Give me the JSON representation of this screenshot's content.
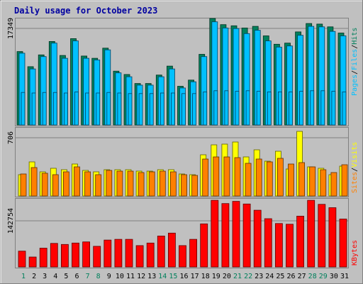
{
  "title": "Daily usage for October 2023",
  "colors": {
    "background": "#c0c0c0",
    "title": "#0000a0",
    "hits": "#00805c",
    "files": "#00c0ff",
    "visits": "#ffff00",
    "sites": "#ff8000",
    "kbytes": "#ff0000",
    "weekday_label": "#000000",
    "weekend_label": "#00805c"
  },
  "chart_data": [
    {
      "type": "bar",
      "panel": "top",
      "y_tick_label": "17349",
      "legend": [
        "Pages",
        "Files",
        "Hits"
      ],
      "categories": [
        "1",
        "2",
        "3",
        "4",
        "5",
        "6",
        "7",
        "8",
        "9",
        "10",
        "11",
        "12",
        "13",
        "14",
        "15",
        "16",
        "17",
        "18",
        "19",
        "20",
        "21",
        "22",
        "23",
        "24",
        "25",
        "26",
        "27",
        "28",
        "29",
        "30",
        "31"
      ],
      "ylim": [
        0,
        19000
      ],
      "series": [
        {
          "name": "Hits",
          "values": [
            13100,
            10400,
            12500,
            14900,
            12400,
            15400,
            12300,
            11900,
            13700,
            9600,
            9000,
            7400,
            7400,
            8900,
            10500,
            6900,
            8000,
            12600,
            19000,
            17900,
            17700,
            17300,
            17600,
            15900,
            14400,
            14600,
            16600,
            18100,
            18000,
            17500,
            16400
          ]
        },
        {
          "name": "Files",
          "values": [
            12800,
            10000,
            12200,
            14600,
            11900,
            15000,
            11900,
            11600,
            13400,
            9300,
            8600,
            7100,
            7100,
            8600,
            10000,
            6600,
            7700,
            12200,
            18400,
            17300,
            17200,
            16300,
            16900,
            15000,
            13900,
            14100,
            16000,
            17600,
            17500,
            16700,
            15900
          ]
        },
        {
          "name": "Pages",
          "values": [
            5800,
            5700,
            5800,
            5800,
            5700,
            5900,
            5700,
            5700,
            5800,
            5700,
            5600,
            5600,
            5600,
            5700,
            5700,
            5600,
            5600,
            5900,
            6100,
            6100,
            6000,
            6100,
            6000,
            5900,
            5900,
            5900,
            6000,
            6100,
            6100,
            6000,
            5900
          ]
        }
      ]
    },
    {
      "type": "bar",
      "panel": "middle",
      "y_tick_label": "706",
      "legend": [
        "Sites",
        "Visits"
      ],
      "categories": [
        "1",
        "2",
        "3",
        "4",
        "5",
        "6",
        "7",
        "8",
        "9",
        "10",
        "11",
        "12",
        "13",
        "14",
        "15",
        "16",
        "17",
        "18",
        "19",
        "20",
        "21",
        "22",
        "23",
        "24",
        "25",
        "26",
        "27",
        "28",
        "29",
        "30",
        "31"
      ],
      "ylim": [
        0,
        960
      ],
      "series": [
        {
          "name": "Visits",
          "values": [
            300,
            480,
            340,
            390,
            370,
            450,
            360,
            340,
            370,
            370,
            370,
            350,
            350,
            370,
            370,
            310,
            300,
            580,
            720,
            730,
            760,
            550,
            650,
            490,
            630,
            380,
            910,
            410,
            390,
            300,
            420
          ]
        },
        {
          "name": "Sites",
          "values": [
            310,
            400,
            320,
            300,
            340,
            410,
            340,
            300,
            360,
            350,
            350,
            330,
            340,
            350,
            340,
            300,
            290,
            520,
            550,
            550,
            540,
            460,
            520,
            480,
            530,
            450,
            470,
            410,
            370,
            330,
            440
          ]
        }
      ]
    },
    {
      "type": "bar",
      "panel": "bottom",
      "y_tick_label": "142754",
      "legend": [
        "KBytes"
      ],
      "categories": [
        "1",
        "2",
        "3",
        "4",
        "5",
        "6",
        "7",
        "8",
        "9",
        "10",
        "11",
        "12",
        "13",
        "14",
        "15",
        "16",
        "17",
        "18",
        "19",
        "20",
        "21",
        "22",
        "23",
        "24",
        "25",
        "26",
        "27",
        "28",
        "29",
        "30",
        "31"
      ],
      "ylim": [
        0,
        185000
      ],
      "series": [
        {
          "name": "KBytes",
          "values": [
            43000,
            27000,
            51000,
            64000,
            61000,
            65000,
            68000,
            56000,
            73000,
            75000,
            75000,
            58000,
            65000,
            84000,
            92000,
            58000,
            75000,
            117000,
            181000,
            172000,
            178000,
            171000,
            154000,
            131000,
            118000,
            116000,
            138000,
            181000,
            170000,
            161000,
            130000
          ]
        }
      ]
    }
  ]
}
